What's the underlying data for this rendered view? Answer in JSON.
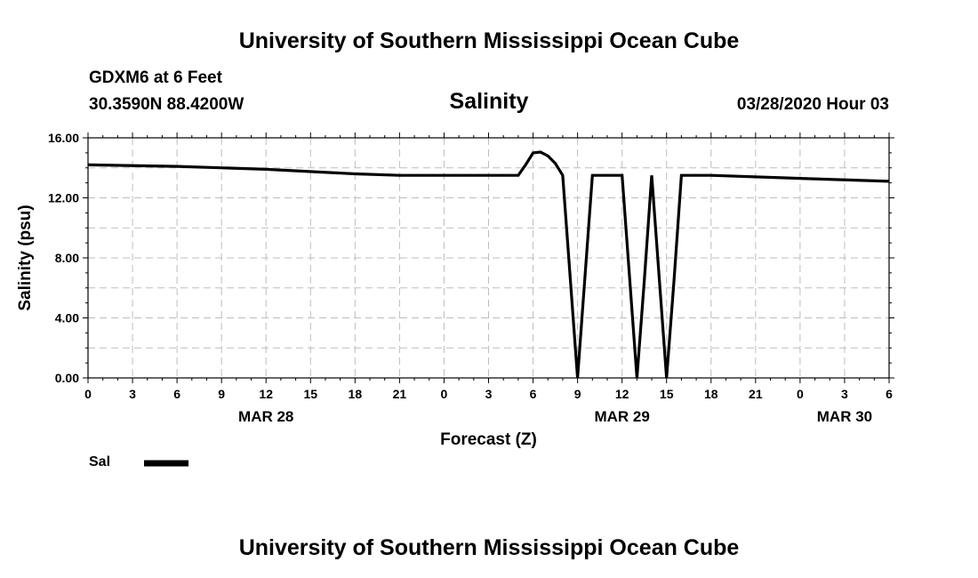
{
  "page": {
    "title_top": "University of Southern Mississippi Ocean Cube",
    "title_bottom": "University of Southern Mississippi Ocean Cube",
    "station": "GDXM6 at 6 Feet",
    "location": "30.3590N 88.4200W",
    "timestamp": "03/28/2020 Hour 03"
  },
  "chart_data": {
    "type": "line",
    "title": "Salinity",
    "xlabel": "Forecast (Z)",
    "ylabel": "Salinity (psu)",
    "ylim": [
      0,
      16
    ],
    "xlim": [
      0,
      54
    ],
    "yticks": [
      "0.00",
      "4.00",
      "8.00",
      "12.00",
      "16.00"
    ],
    "xticks": [
      "0",
      "3",
      "6",
      "9",
      "12",
      "15",
      "18",
      "21",
      "0",
      "3",
      "6",
      "9",
      "12",
      "15",
      "18",
      "21",
      "0",
      "3",
      "6"
    ],
    "date_labels": [
      {
        "label": "MAR 28",
        "x": 12
      },
      {
        "label": "MAR 29",
        "x": 36
      },
      {
        "label": "MAR 30",
        "x": 51
      }
    ],
    "grid": true,
    "legend": {
      "position": "bottom-left",
      "entries": [
        "Sal"
      ]
    },
    "series": [
      {
        "name": "Sal",
        "color": "#000000",
        "x": [
          0,
          6,
          12,
          18,
          21,
          24,
          27,
          29,
          29.5,
          30,
          30.5,
          31,
          31.5,
          32,
          33,
          34,
          36,
          37,
          37.5,
          38,
          39,
          39.5,
          40,
          41,
          42,
          48,
          54
        ],
        "y": [
          14.2,
          14.1,
          13.9,
          13.6,
          13.5,
          13.5,
          13.5,
          13.5,
          14.2,
          15.0,
          15.05,
          14.8,
          14.3,
          13.5,
          0.0,
          13.5,
          13.5,
          0.0,
          6.5,
          13.5,
          0.0,
          6.5,
          13.5,
          13.5,
          13.5,
          13.3,
          13.1
        ]
      }
    ]
  }
}
